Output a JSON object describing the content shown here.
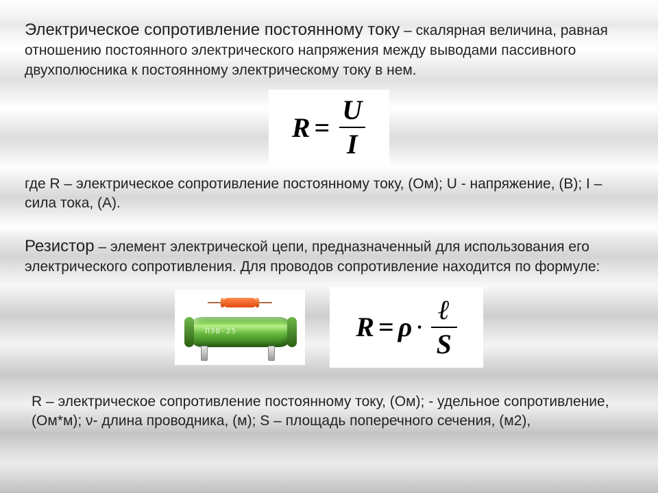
{
  "doc": {
    "text_color": "#222222",
    "bg_base": "#ffffff",
    "font_body": "Arial",
    "font_formula": "Times New Roman"
  },
  "section1": {
    "term": "Электрическое сопротивление постоянному току",
    "definition": " – скалярная величина, равная отношению постоянного электрического напряжения между выводами пассивного двухполюсника к постоянному электрическому току в нем.",
    "formula": {
      "lhs": "R",
      "eq": "=",
      "num": "U",
      "den": "I",
      "bg": "#ffffff",
      "fontsize_pt": 40
    },
    "legend": "где R – электрическое сопротивление постоянному току, (Ом); U - напряжение, (В); I – сила тока, (А).",
    "term_fontsize_pt": 24,
    "body_fontsize_pt": 21
  },
  "section2": {
    "term": "Резистор",
    "definition": " – элемент электрической цепи, предназначенный для использования его электрического сопротивления. Для проводов сопротивление находится по формуле:",
    "formula": {
      "lhs": "R",
      "eq": "=",
      "rho": "ρ",
      "dot": "·",
      "num": "ℓ",
      "den": "S",
      "bg": "#ffffff",
      "fontsize_pt": 40
    },
    "image": {
      "desc": "two resistors",
      "small_body_color": "#e24a10",
      "big_body_color_top": "#7fcf52",
      "big_body_color_bottom": "#2e6e16",
      "label_text": "ПЭВ-25"
    },
    "legend": "R – электрическое сопротивление постоянному току, (Ом);    - удельное сопротивление, (Ом*м); ν- длина проводника, (м); S – площадь поперечного сечения, (м2),",
    "term_fontsize_pt": 24,
    "body_fontsize_pt": 21
  }
}
